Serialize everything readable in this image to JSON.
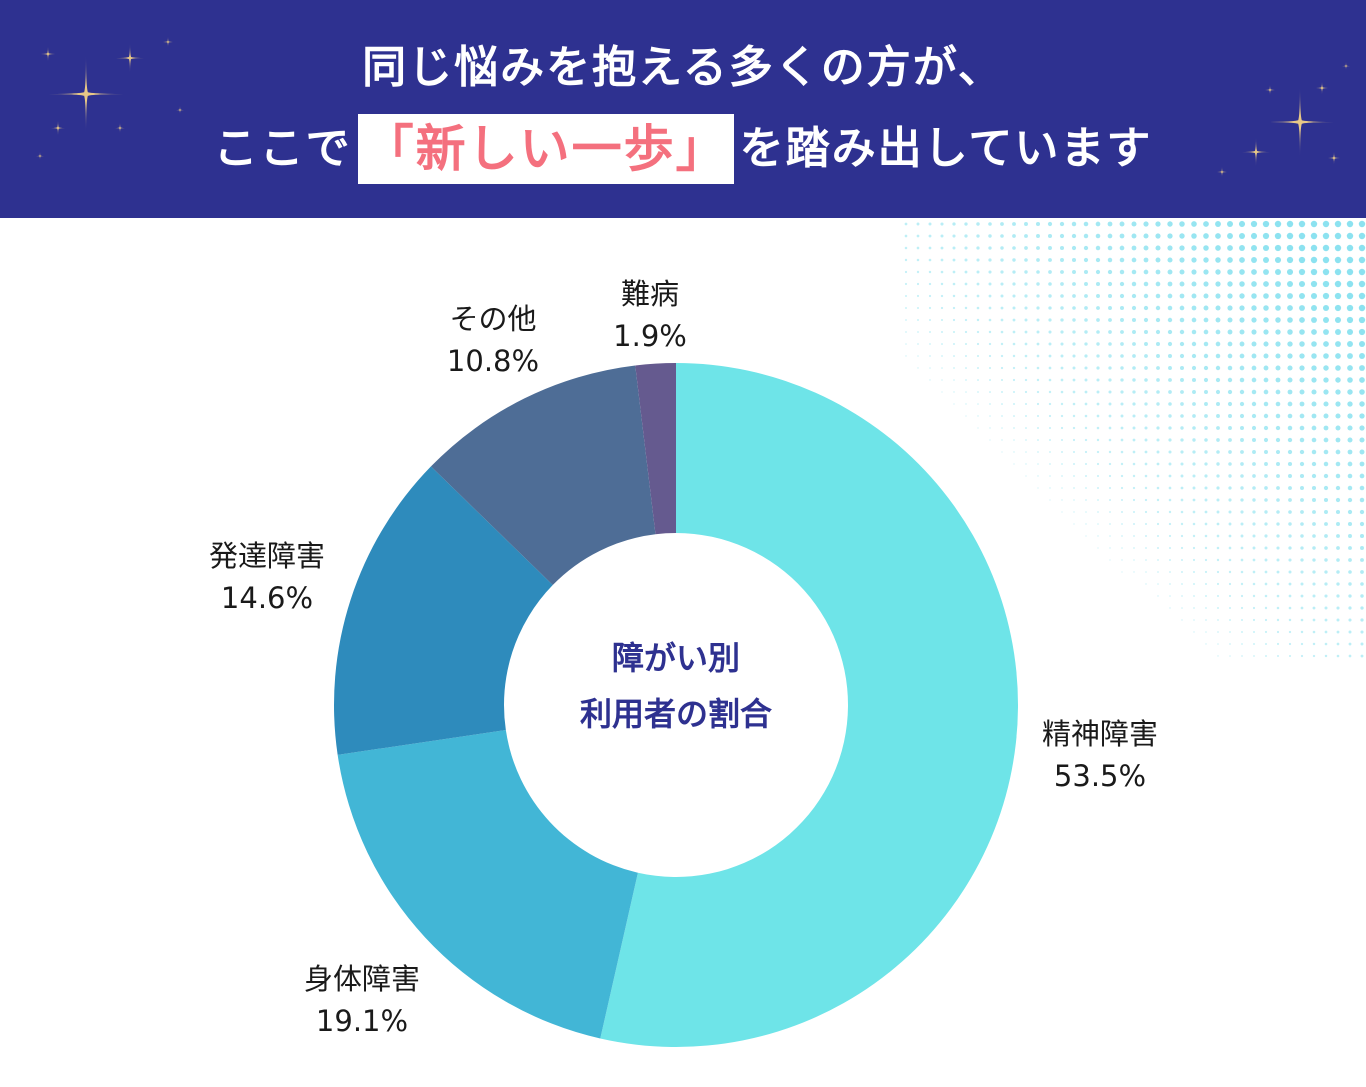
{
  "header": {
    "line1": "同じ悩みを抱える多くの方が、",
    "line2_pre": "ここで",
    "line2_highlight": "「新しい一歩」",
    "line2_post": "を踏み出しています",
    "bg_color": "#2e3190",
    "highlight_color": "#f4707e"
  },
  "chart_data": {
    "type": "pie",
    "center_label_1": "障がい別",
    "center_label_2": "利用者の割合",
    "slices": [
      {
        "name": "精神障害",
        "value": 53.5,
        "label": "53.5%",
        "color": "#6ee4e8"
      },
      {
        "name": "身体障害",
        "value": 19.1,
        "label": "19.1%",
        "color": "#42b6d6"
      },
      {
        "name": "発達障害",
        "value": 14.6,
        "label": "14.6%",
        "color": "#2e8bbc"
      },
      {
        "name": "その他",
        "value": 10.8,
        "label": "10.8%",
        "color": "#4e6d96"
      },
      {
        "name": "難病",
        "value": 1.9,
        "label": "1.9%",
        "color": "#655a8f"
      }
    ]
  }
}
